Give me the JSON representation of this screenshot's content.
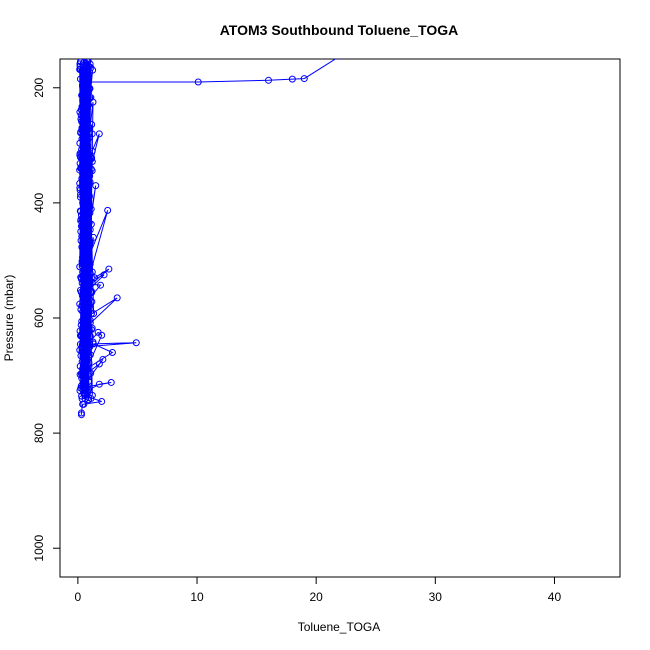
{
  "chart_data": {
    "type": "scatter",
    "title": "ATOM3 Southbound Toluene_TOGA",
    "xlabel": "Toluene_TOGA",
    "ylabel": "Pressure (mbar)",
    "xlim": [
      -1.5,
      45.5
    ],
    "ylim": [
      1050,
      150
    ],
    "y_reversed": true,
    "x_ticks": [
      0,
      10,
      20,
      30,
      40
    ],
    "y_ticks": [
      200,
      400,
      600,
      800,
      1000
    ],
    "grid": false,
    "legend": "none",
    "color": "#0000ff",
    "marker": "open-circle",
    "connect_points": true,
    "series": [
      {
        "x": [
          22.0,
          19.0,
          18.0,
          16.0,
          10.1,
          0.6,
          0.5,
          0.7,
          0.9,
          0.6,
          0.5,
          1.2,
          0.6,
          0.4,
          1.8,
          0.6,
          0.4,
          0.6,
          1.2,
          0.5,
          0.4,
          0.6,
          1.5,
          0.6,
          0.4,
          2.5,
          0.8,
          0.5,
          0.6,
          1.3,
          0.5,
          0.4,
          0.5,
          0.6,
          0.8,
          1.4,
          2.6,
          0.9,
          0.5,
          2.2,
          0.6,
          1.9,
          0.4,
          0.6,
          3.3,
          0.5,
          0.8,
          0.4,
          0.6,
          1.0,
          0.5,
          2.0,
          1.7,
          0.6,
          4.9,
          1.3,
          2.9,
          0.6,
          0.4,
          2.1,
          1.8,
          0.5,
          0.9,
          0.6,
          2.8,
          1.8,
          0.5,
          1.1,
          0.6,
          2.0,
          0.5,
          0.4,
          0.3,
          0.3
        ],
        "y": [
          145,
          184,
          185,
          187,
          190,
          190,
          170,
          160,
          230,
          260,
          300,
          280,
          320,
          350,
          280,
          380,
          400,
          430,
          310,
          450,
          470,
          480,
          370,
          500,
          520,
          413,
          540,
          560,
          580,
          460,
          600,
          620,
          640,
          660,
          490,
          530,
          515,
          545,
          560,
          525,
          540,
          543,
          580,
          600,
          565,
          620,
          640,
          660,
          680,
          650,
          700,
          630,
          625,
          650,
          643,
          645,
          660,
          690,
          720,
          672,
          680,
          700,
          710,
          720,
          712,
          715,
          730,
          740,
          735,
          745,
          750,
          750,
          765,
          768
        ]
      }
    ],
    "cloud": {
      "x_center": 0.6,
      "x_spread": 0.55,
      "y_range": [
        150,
        752
      ],
      "count": 430
    }
  }
}
